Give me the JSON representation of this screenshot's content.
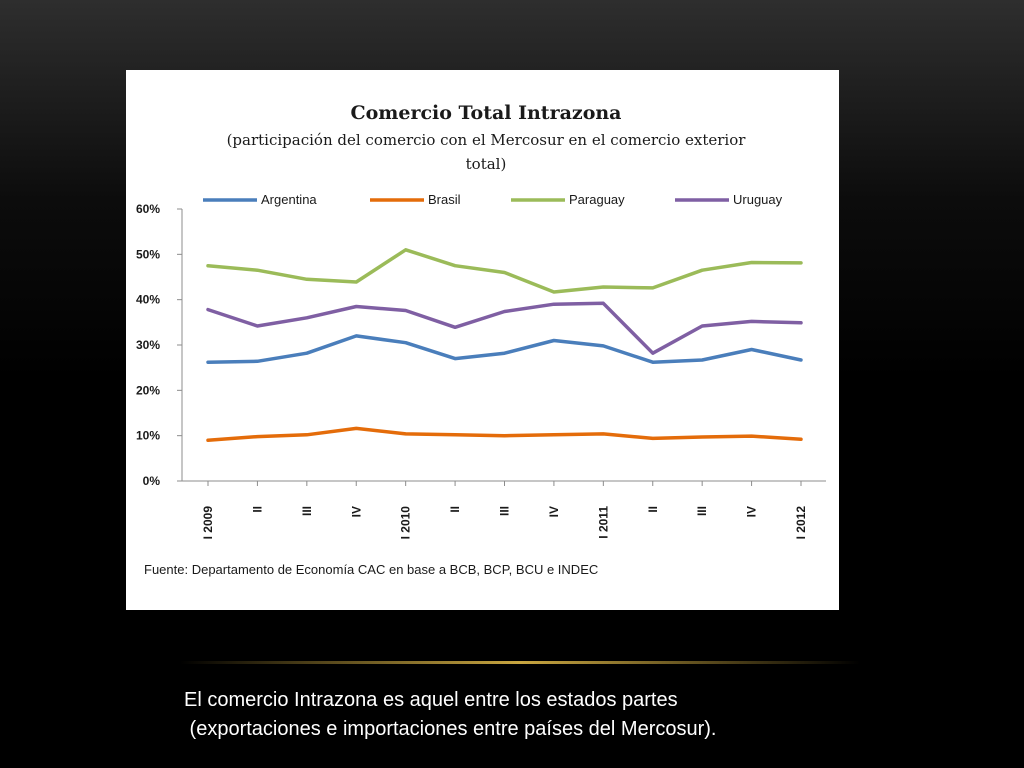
{
  "slide": {
    "caption_line1": "El comercio Intrazona es aquel entre los estados partes",
    "caption_line2": " (exportaciones e importaciones entre países del Mercosur)."
  },
  "chart_data": {
    "type": "line",
    "title": "Comercio  Total Intrazona",
    "subtitle_line1": "(participación del comercio con el Mercosur en el comercio exterior",
    "subtitle_line2": "total)",
    "source": "Fuente: Departamento de Economía CAC en base a BCB, BCP, BCU e INDEC",
    "categories": [
      "I 2009",
      "II",
      "III",
      "IV",
      "I 2010",
      "II",
      "III",
      "IV",
      "I 2011",
      "II",
      "III",
      "IV",
      "I 2012"
    ],
    "ylim": [
      0,
      60
    ],
    "yticks": [
      0,
      10,
      20,
      30,
      40,
      50,
      60
    ],
    "ytick_labels": [
      "0%",
      "10%",
      "20%",
      "30%",
      "40%",
      "50%",
      "60%"
    ],
    "grid": false,
    "legend_position": "top",
    "series": [
      {
        "name": "Argentina",
        "color": "#4a7ebb",
        "values": [
          26.2,
          26.4,
          28.2,
          32.0,
          30.5,
          27.0,
          28.2,
          31.0,
          29.8,
          26.2,
          26.7,
          29.0,
          26.7
        ]
      },
      {
        "name": "Brasil",
        "color": "#e46c0a",
        "values": [
          9.0,
          9.8,
          10.2,
          11.6,
          10.4,
          10.2,
          10.0,
          10.2,
          10.4,
          9.4,
          9.7,
          9.9,
          9.2
        ]
      },
      {
        "name": "Paraguay",
        "color": "#9bbb59",
        "values": [
          47.5,
          46.5,
          44.5,
          43.9,
          51.0,
          47.5,
          46.0,
          41.7,
          42.8,
          42.6,
          46.5,
          48.2,
          48.1
        ]
      },
      {
        "name": "Uruguay",
        "color": "#7f5fa3",
        "values": [
          37.8,
          34.2,
          36.0,
          38.5,
          37.6,
          33.9,
          37.4,
          39.0,
          39.2,
          28.2,
          34.2,
          35.2,
          34.9
        ]
      }
    ]
  }
}
